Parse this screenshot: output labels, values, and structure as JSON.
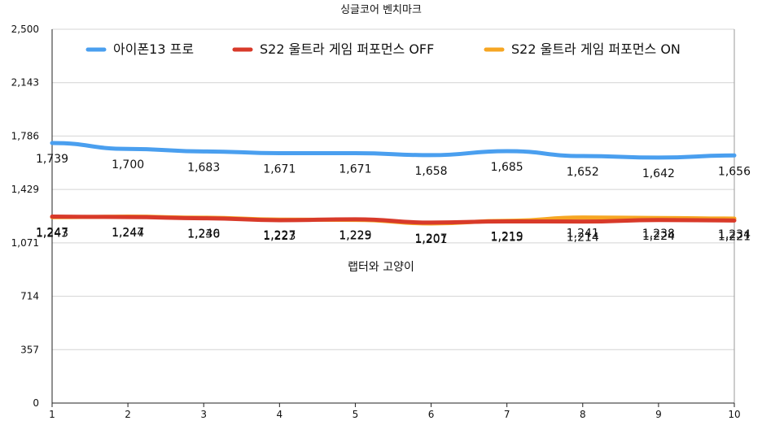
{
  "chart_data": {
    "type": "line",
    "title": "싱글코어 벤치마크",
    "annotation": "랩터와 고양이",
    "xlabel": "",
    "ylabel": "",
    "categories": [
      "1",
      "2",
      "3",
      "4",
      "5",
      "6",
      "7",
      "8",
      "9",
      "10"
    ],
    "ylim": [
      0,
      2500
    ],
    "yticks": [
      "0",
      "357",
      "714",
      "1,071",
      "1,429",
      "1,786",
      "2,143",
      "2,500"
    ],
    "ytick_values": [
      0,
      357,
      714,
      1071,
      1429,
      1786,
      2143,
      2500
    ],
    "grid": true,
    "legend_position": "top",
    "series": [
      {
        "name": "아이폰13 프로",
        "color": "#4a9fef",
        "values": [
          1739,
          1700,
          1683,
          1671,
          1671,
          1658,
          1685,
          1652,
          1642,
          1656
        ],
        "labels": [
          "1,739",
          "1,700",
          "1,683",
          "1,671",
          "1,671",
          "1,658",
          "1,685",
          "1,652",
          "1,642",
          "1,656"
        ]
      },
      {
        "name": "S22 울트라  게임 퍼포먼스 OFF",
        "color": "#d83a2a",
        "values": [
          1247,
          1244,
          1236,
          1223,
          1229,
          1207,
          1215,
          1214,
          1224,
          1221
        ],
        "labels": [
          "1,247",
          "1,244",
          "1,236",
          "1,223",
          "1,229",
          "1,207",
          "1,215",
          "1,214",
          "1,224",
          "1,221"
        ]
      },
      {
        "name": "S22 울트라 게임 퍼포먼스 ON",
        "color": "#f6a623",
        "values": [
          1243,
          1247,
          1240,
          1227,
          1225,
          1201,
          1219,
          1241,
          1238,
          1234
        ],
        "labels": [
          "1,243",
          "1,247",
          "1,240",
          "1,227",
          "1,225",
          "1,201",
          "1,219",
          "1,241",
          "1,238",
          "1,234"
        ]
      }
    ]
  }
}
